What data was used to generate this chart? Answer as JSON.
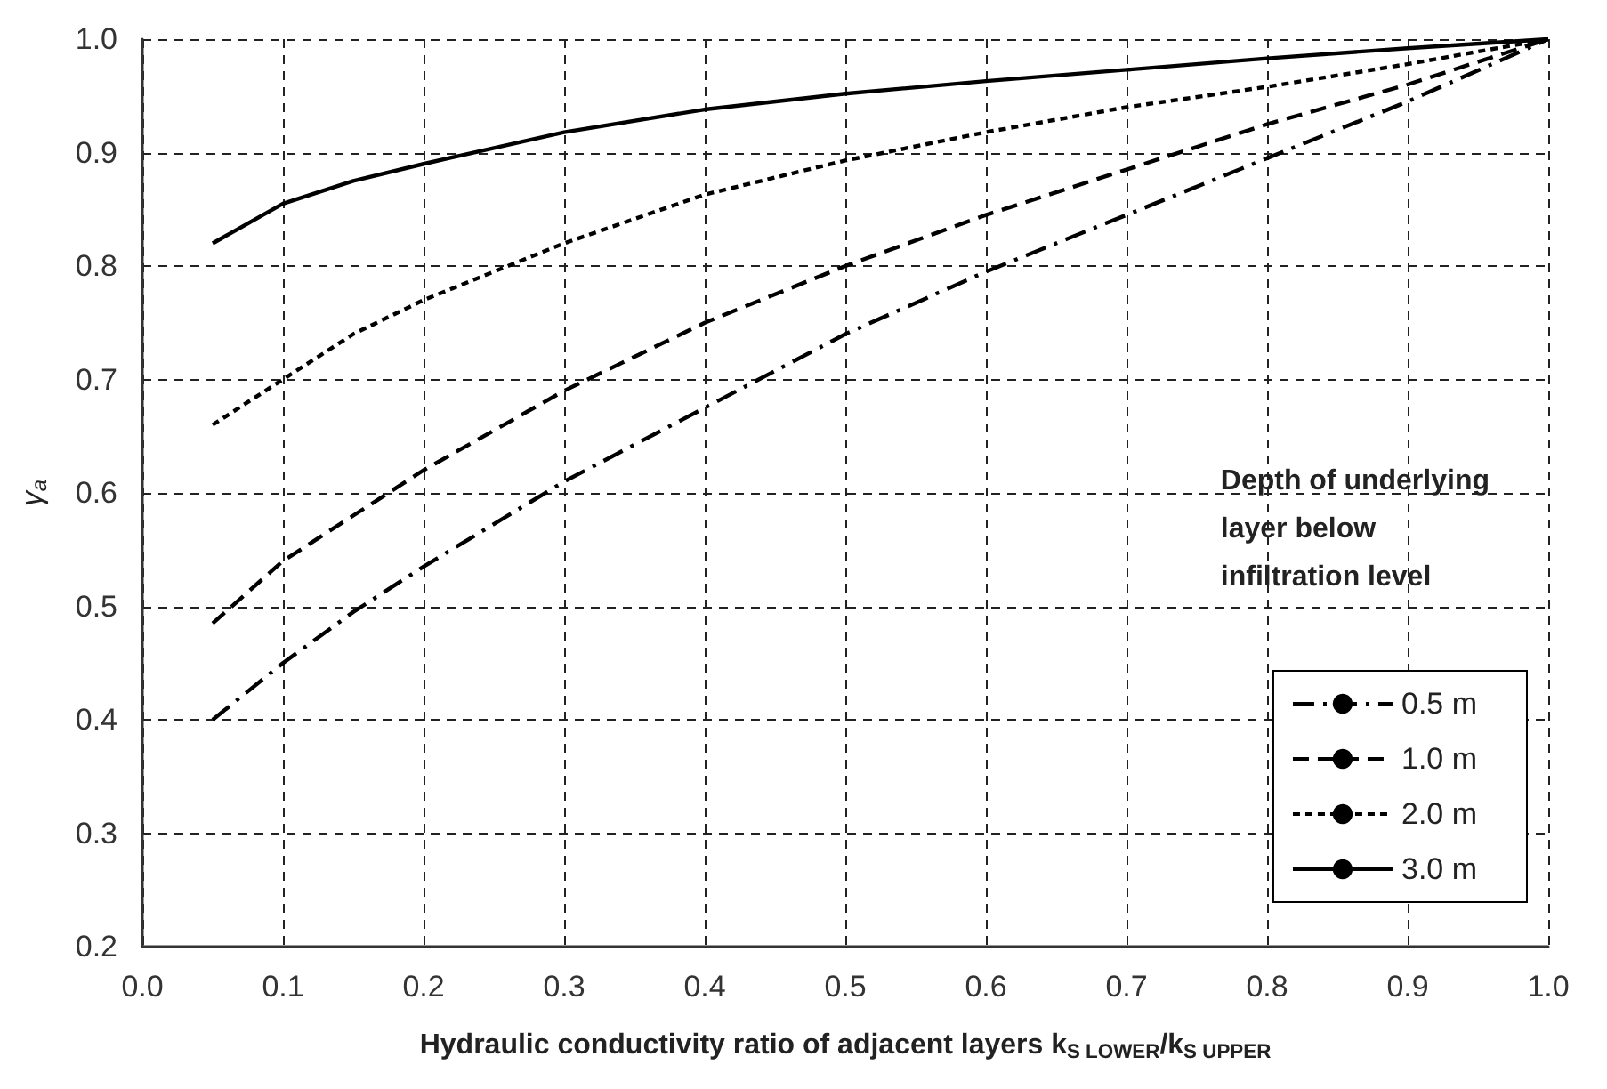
{
  "chart_data": {
    "type": "line",
    "xlabel": "Hydraulic conductivity ratio of adjacent layers k$_{S LOWER}$/k$_{S UPPER}$",
    "ylabel": "γ$_{a}$",
    "legend_title": "Depth of underlying layer below infiltration level",
    "x": [
      0.05,
      0.1,
      0.15,
      0.2,
      0.3,
      0.4,
      0.5,
      0.6,
      0.7,
      0.8,
      0.9,
      1.0
    ],
    "series": [
      {
        "name": "0.5 m",
        "color": "#000000",
        "line_style": "dashdot",
        "values": [
          0.4,
          0.45,
          0.495,
          0.535,
          0.61,
          0.675,
          0.74,
          0.795,
          0.845,
          0.895,
          0.945,
          1.0
        ]
      },
      {
        "name": "1.0 m",
        "color": "#000000",
        "line_style": "dashed",
        "values": [
          0.485,
          0.54,
          0.58,
          0.62,
          0.69,
          0.75,
          0.8,
          0.845,
          0.885,
          0.925,
          0.96,
          1.0
        ]
      },
      {
        "name": "2.0 m",
        "color": "#000000",
        "line_style": "dotted",
        "values": [
          0.66,
          0.7,
          0.74,
          0.77,
          0.82,
          0.863,
          0.893,
          0.918,
          0.94,
          0.958,
          0.978,
          1.0
        ]
      },
      {
        "name": "3.0 m",
        "color": "#000000",
        "line_style": "solid",
        "values": [
          0.82,
          0.855,
          0.875,
          0.89,
          0.918,
          0.938,
          0.952,
          0.963,
          0.973,
          0.983,
          0.992,
          1.0
        ]
      }
    ],
    "xlim": [
      0,
      1
    ],
    "xticks": [
      {
        "value": 0,
        "label": "0.0"
      },
      0.1,
      0.2,
      0.3,
      0.4,
      0.5,
      0.6,
      0.7,
      0.8,
      0.9,
      {
        "value": 1,
        "label": "1.0"
      }
    ],
    "ylim": [
      0.2,
      1
    ],
    "yticks": [
      0.2,
      0.3,
      0.4,
      0.5,
      0.6,
      0.7,
      0.8,
      0.9,
      {
        "value": 1,
        "label": "1.0"
      }
    ],
    "grid": true,
    "legend": "bottom right",
    "marker": "none"
  }
}
